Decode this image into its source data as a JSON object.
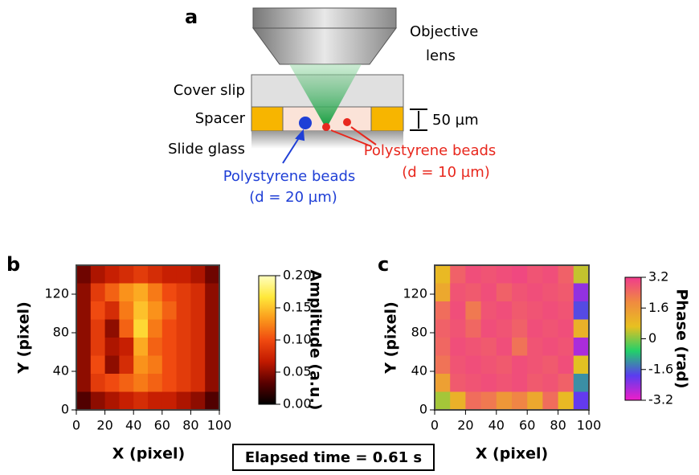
{
  "diagram": {
    "label": "a",
    "objective": [
      "Objective",
      "lens"
    ],
    "cover_slip": "Cover slip",
    "spacer": "Spacer",
    "slide_glass": "Slide glass",
    "thickness": "50 µm",
    "beads_large": {
      "lines": [
        "Polystyrene beads",
        "(d = 20 µm)"
      ],
      "color": "#1f3fd6"
    },
    "beads_small": {
      "lines": [
        "Polystyrene beads",
        "(d = 10 µm)"
      ],
      "color": "#e8281e"
    }
  },
  "chart_data": [
    {
      "type": "heatmap",
      "label": "b",
      "xlabel": "X (pixel)",
      "ylabel": "Y (pixel)",
      "xlim": [
        0,
        100
      ],
      "ylim": [
        0,
        150
      ],
      "xticks": [
        0,
        20,
        40,
        60,
        80,
        100
      ],
      "yticks": [
        0,
        40,
        80,
        120
      ],
      "colorbar": {
        "label": "Amplitude (a.u.)",
        "lim": [
          0,
          0.2
        ],
        "ticks": [
          {
            "value": 0.2,
            "label": "0.20"
          },
          {
            "value": 0.15,
            "label": "0.15"
          },
          {
            "value": 0.1,
            "label": "0.10"
          },
          {
            "value": 0.05,
            "label": "0.05"
          },
          {
            "value": 0,
            "label": "0.00"
          }
        ],
        "colors": [
          "#000000",
          "#5a0000",
          "#c21a00",
          "#f04a10",
          "#fb9a1c",
          "#ffe83a",
          "#ffffc0"
        ]
      },
      "values": [
        [
          0.04,
          0.06,
          0.07,
          0.08,
          0.09,
          0.08,
          0.07,
          0.07,
          0.06,
          0.04
        ],
        [
          0.05,
          0.09,
          0.11,
          0.13,
          0.14,
          0.12,
          0.1,
          0.09,
          0.08,
          0.05
        ],
        [
          0.05,
          0.1,
          0.08,
          0.12,
          0.15,
          0.13,
          0.11,
          0.09,
          0.08,
          0.05
        ],
        [
          0.05,
          0.09,
          0.05,
          0.11,
          0.16,
          0.12,
          0.1,
          0.09,
          0.08,
          0.05
        ],
        [
          0.05,
          0.09,
          0.06,
          0.07,
          0.14,
          0.11,
          0.1,
          0.09,
          0.08,
          0.05
        ],
        [
          0.05,
          0.1,
          0.05,
          0.08,
          0.13,
          0.12,
          0.1,
          0.09,
          0.08,
          0.05
        ],
        [
          0.05,
          0.09,
          0.1,
          0.11,
          0.12,
          0.11,
          0.1,
          0.09,
          0.08,
          0.05
        ],
        [
          0.03,
          0.05,
          0.06,
          0.07,
          0.08,
          0.07,
          0.07,
          0.06,
          0.05,
          0.03
        ]
      ]
    },
    {
      "type": "heatmap",
      "label": "c",
      "xlabel": "X (pixel)",
      "ylabel": "Y (pixel)",
      "xlim": [
        0,
        100
      ],
      "ylim": [
        0,
        150
      ],
      "xticks": [
        0,
        20,
        40,
        60,
        80,
        100
      ],
      "yticks": [
        0,
        40,
        80,
        120
      ],
      "colorbar": {
        "label": "Phase (rad)",
        "lim": [
          -3.2,
          3.2
        ],
        "ticks": [
          3.2,
          1.6,
          0,
          -1.6,
          -3.2
        ],
        "colors": [
          "#f01ec8",
          "#5a3cf0",
          "#22d06a",
          "#e8c020",
          "#f08a40",
          "#f03c8c"
        ]
      },
      "values": [
        [
          0.8,
          2.6,
          2.9,
          2.8,
          2.9,
          3.0,
          2.8,
          2.9,
          2.6,
          0.4
        ],
        [
          1.2,
          2.8,
          2.7,
          2.9,
          2.6,
          2.8,
          2.9,
          2.8,
          2.7,
          -2.4
        ],
        [
          2.4,
          2.9,
          2.2,
          2.8,
          2.9,
          2.7,
          2.8,
          2.9,
          2.8,
          -1.8
        ],
        [
          2.6,
          2.8,
          2.5,
          2.9,
          2.8,
          2.6,
          2.9,
          2.8,
          2.9,
          1.0
        ],
        [
          2.5,
          2.9,
          2.8,
          2.7,
          2.9,
          2.3,
          2.8,
          2.9,
          2.8,
          -2.6
        ],
        [
          2.3,
          2.8,
          2.9,
          2.8,
          2.7,
          2.9,
          2.8,
          2.7,
          2.9,
          0.6
        ],
        [
          1.4,
          2.7,
          2.8,
          2.9,
          2.8,
          2.9,
          2.7,
          2.8,
          2.6,
          -1.2
        ],
        [
          0.2,
          1.0,
          2.4,
          2.2,
          1.6,
          2.0,
          1.2,
          2.4,
          0.8,
          -2.0
        ]
      ]
    }
  ],
  "caption": "Elapsed time = 0.61 s"
}
